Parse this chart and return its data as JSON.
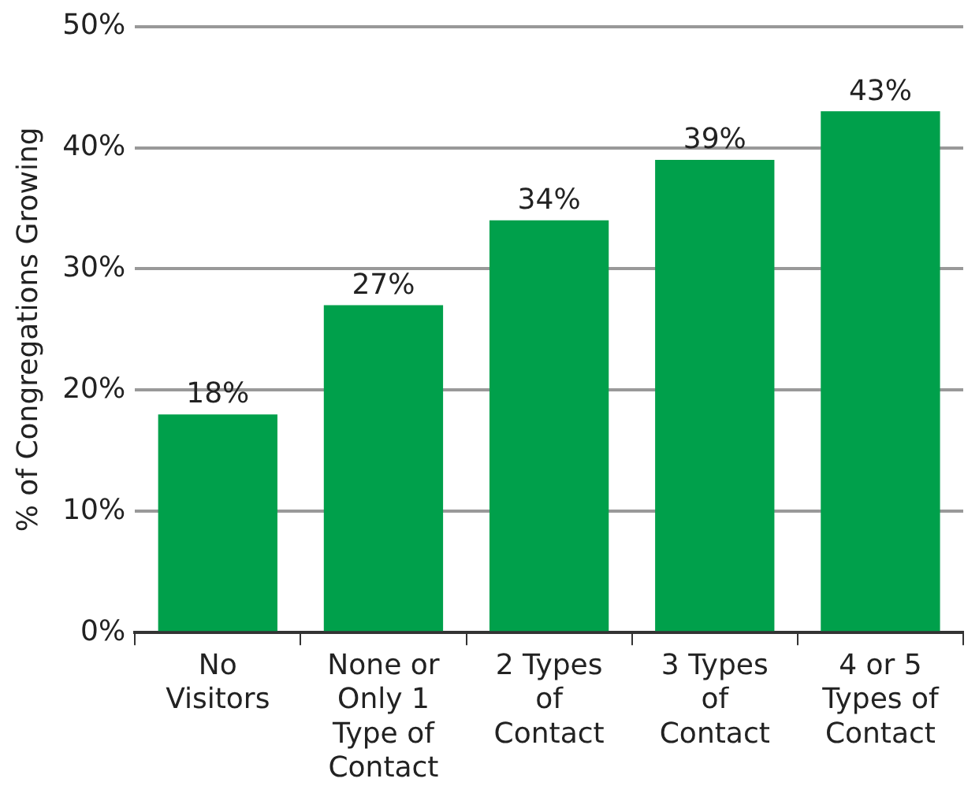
{
  "chart_data": {
    "type": "bar",
    "ylabel": "% of Congregations Growing",
    "categories": [
      "No\nVisitors",
      "None or\nOnly 1\nType of\nContact",
      "2 Types\nof\nContact",
      "3 Types\nof\nContact",
      "4 or 5\nTypes of\nContact"
    ],
    "values": [
      18,
      27,
      34,
      39,
      43
    ],
    "color": "#00a04b",
    "value_labels": [
      "18%",
      "27%",
      "34%",
      "39%",
      "43%"
    ],
    "ylim": [
      0,
      50
    ],
    "yticks": [
      {
        "value": 0,
        "label": "0%"
      },
      {
        "value": 10,
        "label": "10%"
      },
      {
        "value": 20,
        "label": "20%"
      },
      {
        "value": 30,
        "label": "30%"
      },
      {
        "value": 40,
        "label": "40%"
      },
      {
        "value": 50,
        "label": "50%"
      }
    ],
    "grid": "y",
    "legend": false
  }
}
